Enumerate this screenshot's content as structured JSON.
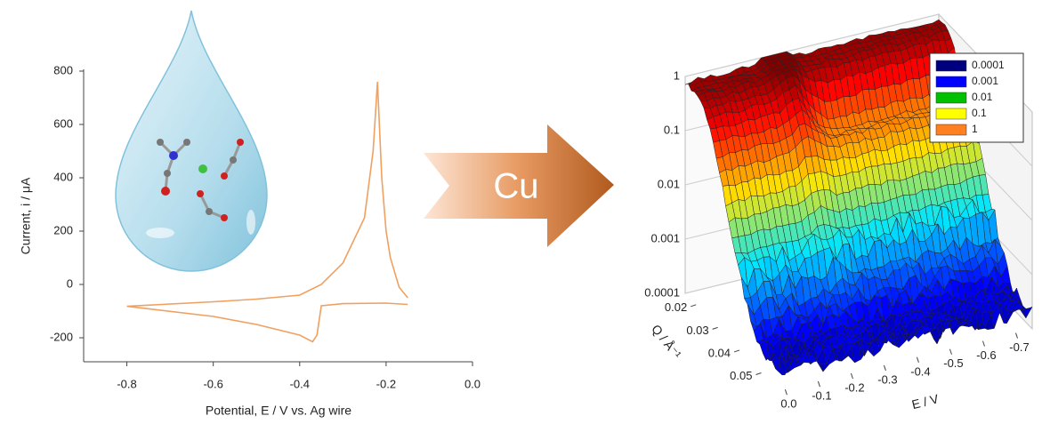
{
  "arrow_label": "Cu",
  "chart_data": [
    {
      "type": "line",
      "x_label": "Potential, E / V vs. Ag wire",
      "y_label": "Current, i / μA",
      "xlim": [
        -0.9,
        0.0
      ],
      "ylim": [
        -300,
        800
      ],
      "xticks": [
        -0.8,
        -0.6,
        -0.4,
        -0.2,
        {
          "value": 0,
          "label": "0.0"
        }
      ],
      "yticks": [
        -200,
        0,
        200,
        400,
        600,
        800
      ],
      "series": [
        {
          "color": "#f0a060",
          "x": [
            -0.15,
            -0.17,
            -0.19,
            -0.2,
            -0.21,
            -0.22,
            -0.23,
            -0.25,
            -0.3,
            -0.35,
            -0.4,
            -0.5,
            -0.6,
            -0.8,
            -0.6,
            -0.5,
            -0.4,
            -0.37,
            -0.36,
            -0.35,
            -0.3,
            -0.2,
            -0.15
          ],
          "values": [
            -50,
            -10,
            100,
            200,
            400,
            760,
            500,
            250,
            80,
            0,
            -40,
            -55,
            -65,
            -82,
            -120,
            -150,
            -190,
            -215,
            -190,
            -80,
            -72,
            -70,
            -75
          ]
        }
      ]
    },
    {
      "type": "surface",
      "x_label": "E / V",
      "y_label": "Q / Å⁻¹",
      "log_z": true,
      "xlim": [
        0.02,
        -0.75
      ],
      "ylim": [
        0.015,
        0.058
      ],
      "zlim": [
        0.0001,
        1
      ],
      "xticks": [
        {
          "value": 0,
          "label": "0.0"
        },
        -0.1,
        -0.2,
        -0.3,
        -0.4,
        -0.5,
        -0.6,
        -0.7
      ],
      "yticks": [
        0.02,
        0.03,
        0.04,
        0.05
      ],
      "zticks": [
        0.0001,
        0.001,
        0.01,
        0.1,
        1
      ],
      "legend": [
        {
          "name": "0.0001",
          "color": "#00007f"
        },
        {
          "name": "0.001",
          "color": "#0000ff"
        },
        {
          "name": "0.01",
          "color": "#00c000"
        },
        {
          "name": "0.1",
          "color": "#ffff00"
        },
        {
          "name": "1",
          "color": "#ff8020"
        }
      ]
    }
  ]
}
